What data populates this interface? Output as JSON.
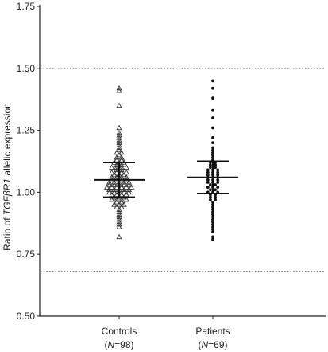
{
  "chart_data": {
    "type": "scatter",
    "ylabel_pre": "Ratio of ",
    "ylabel_gene": "TGFβR1",
    "ylabel_post": " allelic expression",
    "ylim": [
      0.5,
      1.75
    ],
    "yticks": [
      "0.50",
      "0.75",
      "1.00",
      "1.25",
      "1.50",
      "1.75"
    ],
    "reference_lines": [
      1.5,
      0.68
    ],
    "grid": false,
    "categories": [
      {
        "label": "Controls",
        "n_pre": "(",
        "n_italic": "N",
        "n_post": "=98)",
        "marker": "triangle",
        "mean": 1.05,
        "sd_low": 0.98,
        "sd_high": 1.12
      },
      {
        "label": "Patients",
        "n_pre": "(",
        "n_italic": "N",
        "n_post": "=69)",
        "marker": "dot",
        "mean": 1.06,
        "sd_low": 0.995,
        "sd_high": 1.125
      }
    ],
    "series": [
      {
        "category": "Controls",
        "values": [
          1.42,
          1.41,
          1.35,
          1.26,
          1.24,
          1.23,
          1.22,
          1.21,
          1.2,
          1.19,
          1.18,
          1.17,
          1.16,
          1.16,
          1.15,
          1.14,
          1.14,
          1.13,
          1.13,
          1.12,
          1.12,
          1.11,
          1.11,
          1.1,
          1.1,
          1.1,
          1.09,
          1.09,
          1.08,
          1.08,
          1.08,
          1.07,
          1.07,
          1.07,
          1.06,
          1.06,
          1.06,
          1.05,
          1.05,
          1.05,
          1.05,
          1.04,
          1.04,
          1.04,
          1.04,
          1.03,
          1.03,
          1.03,
          1.03,
          1.02,
          1.02,
          1.02,
          1.02,
          1.02,
          1.01,
          1.01,
          1.01,
          1.01,
          1.01,
          1.0,
          1.0,
          1.0,
          1.0,
          0.99,
          0.99,
          0.99,
          0.98,
          0.98,
          0.98,
          0.97,
          0.97,
          0.97,
          0.96,
          0.96,
          0.95,
          0.95,
          0.94,
          0.94,
          0.93,
          0.92,
          0.91,
          0.9,
          0.89,
          0.88,
          0.87,
          0.86,
          0.82,
          1.12,
          1.1,
          1.08,
          1.06,
          1.04,
          1.03,
          1.02,
          1.0,
          0.99,
          0.97,
          0.95
        ]
      },
      {
        "category": "Patients",
        "values": [
          1.45,
          1.42,
          1.38,
          1.33,
          1.3,
          1.26,
          1.22,
          1.2,
          1.18,
          1.17,
          1.16,
          1.15,
          1.14,
          1.13,
          1.12,
          1.12,
          1.11,
          1.11,
          1.1,
          1.1,
          1.09,
          1.09,
          1.09,
          1.08,
          1.08,
          1.08,
          1.07,
          1.07,
          1.07,
          1.06,
          1.06,
          1.06,
          1.05,
          1.05,
          1.05,
          1.04,
          1.04,
          1.04,
          1.03,
          1.03,
          1.02,
          1.02,
          1.01,
          1.01,
          1.0,
          1.0,
          0.99,
          0.99,
          0.98,
          0.98,
          0.97,
          0.97,
          0.96,
          0.95,
          0.94,
          0.93,
          0.92,
          0.91,
          0.9,
          0.89,
          0.88,
          0.87,
          0.86,
          0.85,
          0.84,
          0.82,
          0.81,
          1.0,
          1.02
        ]
      }
    ]
  }
}
